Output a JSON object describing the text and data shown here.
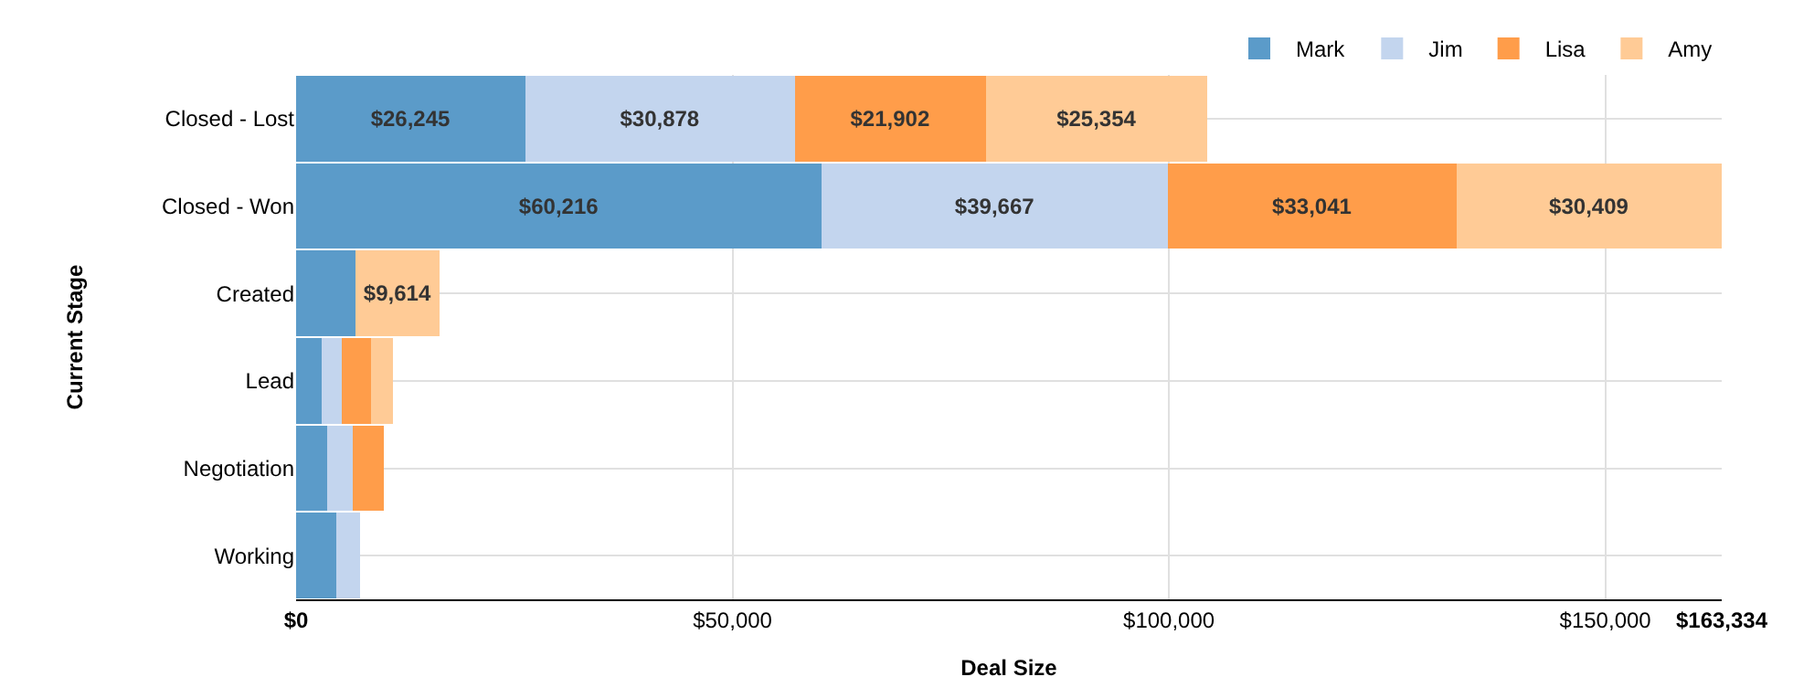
{
  "chart_data": {
    "type": "bar",
    "orientation": "horizontal",
    "stacked": true,
    "xlabel": "Deal Size",
    "ylabel": "Current Stage",
    "categories": [
      "Closed - Lost",
      "Closed - Won",
      "Created",
      "Lead",
      "Negotiation",
      "Working"
    ],
    "series": [
      {
        "name": "Mark",
        "color": "#5b9bc9",
        "values": [
          26245,
          60216,
          6800,
          2900,
          3600,
          4600
        ],
        "value_labels": [
          "$26,245",
          "$60,216",
          null,
          null,
          null,
          null
        ]
      },
      {
        "name": "Jim",
        "color": "#c3d5ee",
        "values": [
          30878,
          39667,
          null,
          2300,
          2900,
          2700
        ],
        "value_labels": [
          "$30,878",
          "$39,667",
          null,
          null,
          null,
          null
        ]
      },
      {
        "name": "Lisa",
        "color": "#ff9d4a",
        "values": [
          21902,
          33041,
          null,
          3400,
          3600,
          null
        ],
        "value_labels": [
          "$21,902",
          "$33,041",
          null,
          null,
          null,
          null
        ]
      },
      {
        "name": "Amy",
        "color": "#ffcb96",
        "values": [
          25354,
          30409,
          9614,
          2500,
          null,
          null
        ],
        "value_labels": [
          "$25,354",
          "$30,409",
          "$9,614",
          null,
          null,
          null
        ]
      }
    ],
    "xlim": [
      0,
      163334
    ],
    "xticks": [
      {
        "value": 0,
        "label": "$0"
      },
      {
        "value": 50000,
        "label": "$50,000"
      },
      {
        "value": 100000,
        "label": "$100,000"
      },
      {
        "value": 150000,
        "label": "$150,000"
      },
      {
        "value": 163334,
        "label": "$163,334"
      }
    ],
    "grid": true,
    "legend": "top right"
  }
}
